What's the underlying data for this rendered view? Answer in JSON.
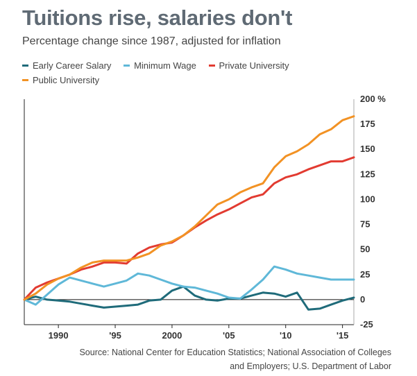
{
  "chart_data": {
    "type": "line",
    "title": "Tuitions rise, salaries don't",
    "subtitle": "Percentage change since 1987, adjusted for inflation",
    "x_ticks": [
      {
        "value": 1990,
        "label": "1990"
      },
      {
        "value": 1995,
        "label": "'95"
      },
      {
        "value": 2000,
        "label": "2000"
      },
      {
        "value": 2005,
        "label": "'05"
      },
      {
        "value": 2010,
        "label": "'10"
      },
      {
        "value": 2015,
        "label": "'15"
      }
    ],
    "y_ticks": [
      {
        "value": 200,
        "label": "200 %"
      },
      {
        "value": 175,
        "label": "175"
      },
      {
        "value": 150,
        "label": "150"
      },
      {
        "value": 125,
        "label": "125"
      },
      {
        "value": 100,
        "label": "100"
      },
      {
        "value": 75,
        "label": "75"
      },
      {
        "value": 50,
        "label": "50"
      },
      {
        "value": 25,
        "label": "25"
      },
      {
        "value": 0,
        "label": "0"
      },
      {
        "value": -25,
        "label": "-25"
      }
    ],
    "xlim": [
      1987,
      2016
    ],
    "ylim": [
      -25,
      200
    ],
    "grid": false,
    "legend_position": "top-left",
    "series": [
      {
        "name": "Early Career Salary",
        "color": "#1f6b7a",
        "x": [
          1987,
          1988,
          1989,
          1990,
          1991,
          1992,
          1993,
          1994,
          1995,
          1996,
          1997,
          1998,
          1999,
          2000,
          2001,
          2002,
          2003,
          2004,
          2005,
          2006,
          2007,
          2008,
          2009,
          2010,
          2011,
          2012,
          2013,
          2014,
          2015,
          2016
        ],
        "y": [
          0,
          3,
          0,
          -1,
          -2,
          -4,
          -6,
          -8,
          -7,
          -6,
          -5,
          -1,
          0,
          9,
          13,
          4,
          0,
          -1,
          1,
          1,
          4,
          7,
          6,
          3,
          7,
          -10,
          -9,
          -5,
          -1,
          2
        ]
      },
      {
        "name": "Minimum Wage",
        "color": "#5fb8d8",
        "x": [
          1987,
          1988,
          1989,
          1990,
          1991,
          1992,
          1993,
          1994,
          1995,
          1996,
          1997,
          1998,
          1999,
          2000,
          2001,
          2002,
          2003,
          2004,
          2005,
          2006,
          2007,
          2008,
          2009,
          2010,
          2011,
          2012,
          2013,
          2014,
          2015,
          2016
        ],
        "y": [
          0,
          -5,
          5,
          15,
          22,
          19,
          16,
          13,
          16,
          19,
          26,
          24,
          20,
          16,
          13,
          12,
          9,
          6,
          2,
          1,
          10,
          20,
          33,
          30,
          26,
          24,
          22,
          20,
          20,
          20
        ]
      },
      {
        "name": "Private University",
        "color": "#e23b31",
        "x": [
          1987,
          1988,
          1989,
          1990,
          1991,
          1992,
          1993,
          1994,
          1995,
          1996,
          1997,
          1998,
          1999,
          2000,
          2001,
          2002,
          2003,
          2004,
          2005,
          2006,
          2007,
          2008,
          2009,
          2010,
          2011,
          2012,
          2013,
          2014,
          2015,
          2016
        ],
        "y": [
          0,
          12,
          17,
          21,
          25,
          30,
          33,
          37,
          37,
          36,
          46,
          52,
          55,
          57,
          64,
          72,
          79,
          85,
          90,
          96,
          102,
          105,
          116,
          122,
          125,
          130,
          134,
          138,
          138,
          142
        ]
      },
      {
        "name": "Public University",
        "color": "#f29224",
        "x": [
          1987,
          1988,
          1989,
          1990,
          1991,
          1992,
          1993,
          1994,
          1995,
          1996,
          1997,
          1998,
          1999,
          2000,
          2001,
          2002,
          2003,
          2004,
          2005,
          2006,
          2007,
          2008,
          2009,
          2010,
          2011,
          2012,
          2013,
          2014,
          2015,
          2016
        ],
        "y": [
          0,
          6,
          15,
          21,
          25,
          32,
          37,
          39,
          39,
          39,
          42,
          46,
          54,
          58,
          64,
          73,
          84,
          95,
          100,
          107,
          112,
          116,
          132,
          143,
          148,
          155,
          165,
          170,
          179,
          183
        ]
      }
    ]
  },
  "source_line1": "Source: National Center for Education Statistics; National Association of Colleges",
  "source_line2": "and Employers; U.S. Department of Labor"
}
